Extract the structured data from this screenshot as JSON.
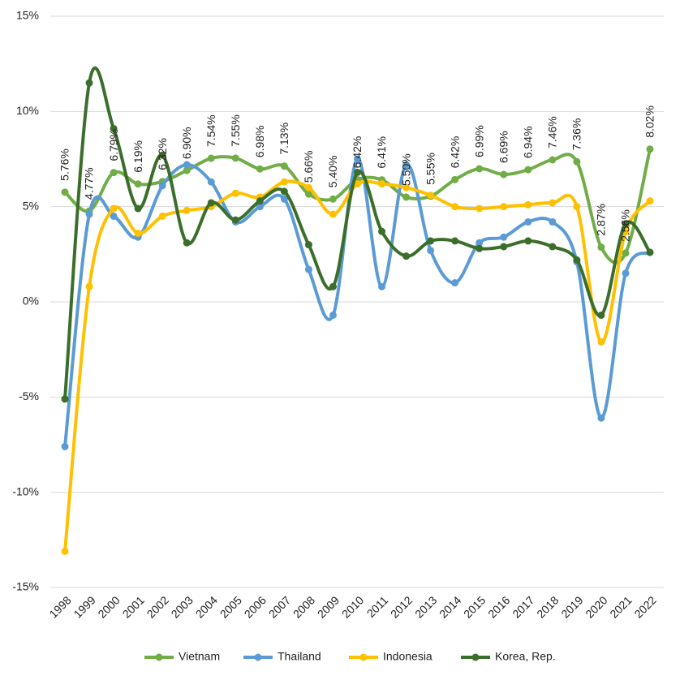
{
  "chart_data": {
    "type": "line",
    "categories": [
      "1998",
      "1999",
      "2000",
      "2001",
      "2002",
      "2003",
      "2004",
      "2005",
      "2006",
      "2007",
      "2008",
      "2009",
      "2010",
      "2011",
      "2012",
      "2013",
      "2014",
      "2015",
      "2016",
      "2017",
      "2018",
      "2019",
      "2020",
      "2021",
      "2022"
    ],
    "series": [
      {
        "name": "Vietnam",
        "color": "#70ad47",
        "values": [
          5.76,
          4.77,
          6.79,
          6.19,
          6.32,
          6.9,
          7.54,
          7.55,
          6.98,
          7.13,
          5.66,
          5.4,
          6.42,
          6.41,
          5.5,
          5.55,
          6.42,
          6.99,
          6.69,
          6.94,
          7.46,
          7.36,
          2.87,
          2.56,
          8.02
        ],
        "value_labels": [
          "5.76%",
          "4.77%",
          "6.79%",
          "6.19%",
          "6.32%",
          "6.90%",
          "7.54%",
          "7.55%",
          "6.98%",
          "7.13%",
          "5.66%",
          "5.40%",
          "6.42%",
          "6.41%",
          "5.50%",
          "5.55%",
          "6.42%",
          "6.99%",
          "6.69%",
          "6.94%",
          "7.46%",
          "7.36%",
          "2.87%",
          "2.56%",
          "8.02%"
        ]
      },
      {
        "name": "Thailand",
        "color": "#5b9bd5",
        "values": [
          -7.6,
          4.6,
          4.5,
          3.4,
          6.1,
          7.2,
          6.3,
          4.2,
          5.0,
          5.4,
          1.7,
          -0.7,
          7.5,
          0.8,
          7.2,
          2.7,
          1.0,
          3.1,
          3.4,
          4.2,
          4.2,
          2.1,
          -6.1,
          1.5,
          2.6
        ]
      },
      {
        "name": "Indonesia",
        "color": "#ffc000",
        "values": [
          -13.1,
          0.8,
          4.9,
          3.6,
          4.5,
          4.8,
          5.0,
          5.7,
          5.5,
          6.3,
          6.0,
          4.6,
          6.2,
          6.2,
          6.0,
          5.6,
          5.0,
          4.9,
          5.0,
          5.1,
          5.2,
          5.0,
          -2.1,
          3.7,
          5.3
        ]
      },
      {
        "name": "Korea, Rep.",
        "color": "#3b6e2a",
        "values": [
          -5.1,
          11.5,
          9.1,
          4.9,
          7.7,
          3.1,
          5.2,
          4.3,
          5.3,
          5.8,
          3.0,
          0.8,
          6.8,
          3.7,
          2.4,
          3.2,
          3.2,
          2.8,
          2.9,
          3.2,
          2.9,
          2.2,
          -0.7,
          4.1,
          2.6
        ]
      }
    ],
    "ylim": [
      -15,
      15
    ],
    "yticks": [
      {
        "value": -15,
        "label": "-15%"
      },
      {
        "value": -10,
        "label": "-10%"
      },
      {
        "value": -5,
        "label": "-5%"
      },
      {
        "value": 0,
        "label": "0%"
      },
      {
        "value": 5,
        "label": "5%"
      },
      {
        "value": 10,
        "label": "10%"
      },
      {
        "value": 15,
        "label": "15%"
      }
    ],
    "grid": true,
    "legend": "bottom"
  }
}
